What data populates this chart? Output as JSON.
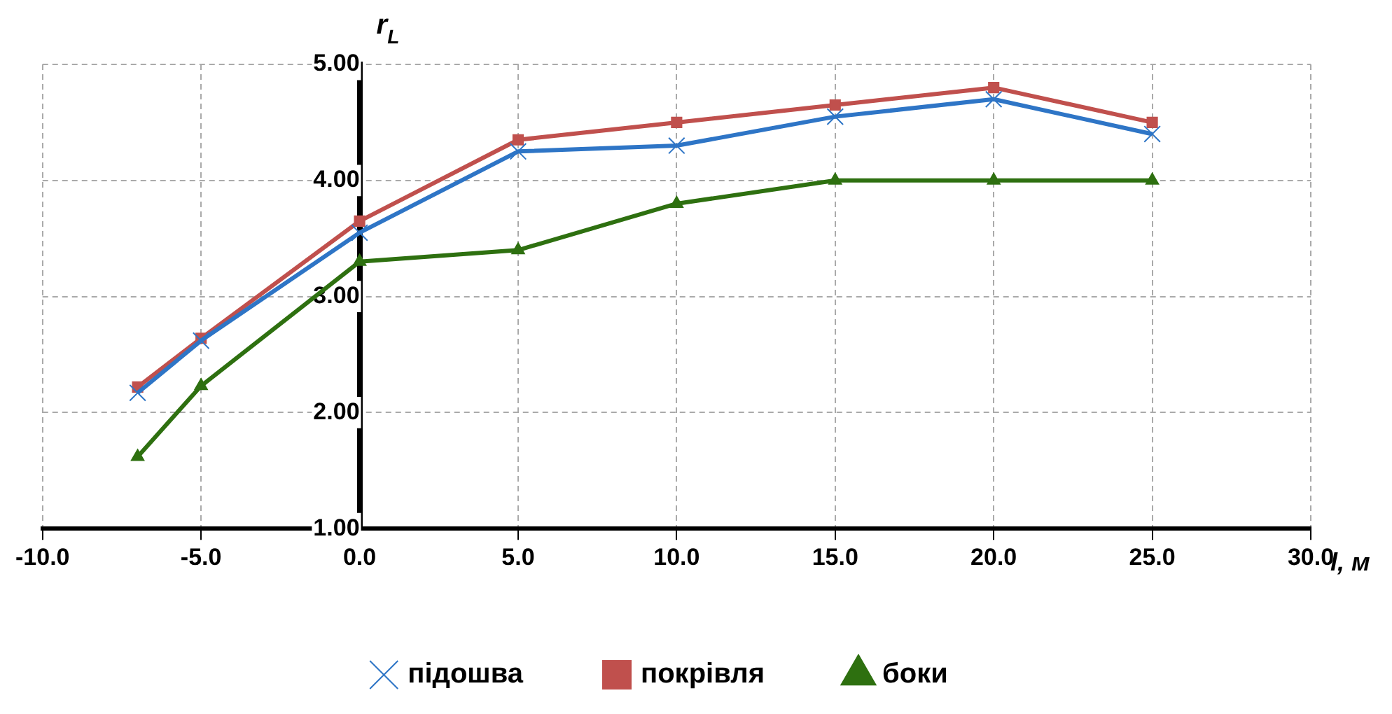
{
  "chart_data": {
    "type": "line",
    "xlabel": "l, м",
    "ylabel": "r$_{L}$",
    "x": [
      -7,
      -5,
      0,
      5,
      10,
      15,
      20,
      25
    ],
    "series": [
      {
        "name": "підошва",
        "color": "#2e75c6",
        "marker": "cross",
        "values": [
          2.17,
          2.62,
          3.55,
          4.25,
          4.3,
          4.55,
          4.7,
          4.4
        ]
      },
      {
        "name": "покрівля",
        "color": "#c0504d",
        "marker": "square",
        "values": [
          2.22,
          2.64,
          3.65,
          4.35,
          4.5,
          4.65,
          4.8,
          4.5
        ]
      },
      {
        "name": "боки",
        "color": "#2e7010",
        "marker": "triangle",
        "values": [
          1.62,
          2.23,
          3.3,
          3.4,
          3.8,
          4.0,
          4.0,
          4.0
        ]
      }
    ],
    "xlim": [
      -10,
      30
    ],
    "xticks": [
      {
        "value": -10,
        "label": "-10.0"
      },
      {
        "value": -5,
        "label": "-5.0"
      },
      {
        "value": 0,
        "label": "0.0"
      },
      {
        "value": 5,
        "label": "5.0"
      },
      {
        "value": 10,
        "label": "10.0"
      },
      {
        "value": 15,
        "label": "15.0"
      },
      {
        "value": 20,
        "label": "20.0"
      },
      {
        "value": 25,
        "label": "25.0"
      },
      {
        "value": 30,
        "label": "30.0"
      }
    ],
    "ylim": [
      1,
      5
    ],
    "yticks": [
      {
        "value": 1,
        "label": "1.00"
      },
      {
        "value": 2,
        "label": "2.00"
      },
      {
        "value": 3,
        "label": "3.00"
      },
      {
        "value": 4,
        "label": "4.00"
      },
      {
        "value": 5,
        "label": "5.00"
      }
    ],
    "grid": true,
    "legend": "bottom",
    "line_style": "solid"
  }
}
